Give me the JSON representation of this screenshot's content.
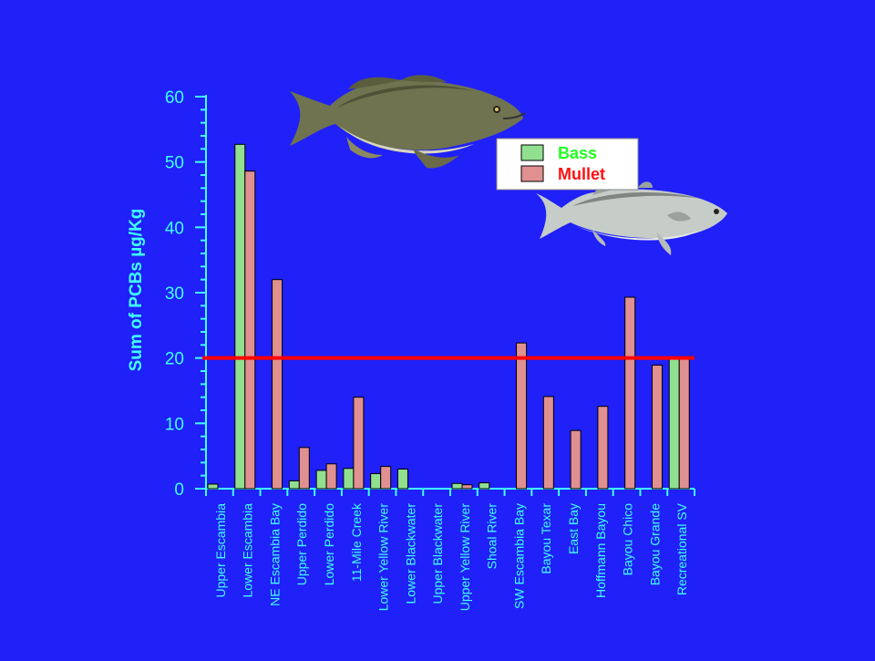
{
  "chart_data": {
    "type": "bar",
    "title": "",
    "xlabel": "",
    "ylabel": "Sum of PCBs µg/Kg",
    "ylim": [
      0,
      60
    ],
    "yticks": [
      0,
      10,
      20,
      30,
      40,
      50,
      60
    ],
    "grid": false,
    "legend_position": "top-right",
    "categories": [
      "Upper Escambia",
      "Lower Escambia",
      "NE Escambia Bay",
      "Upper Perdido",
      "Lower Perdido",
      "11-Mile Creek",
      "Lower Yellow River",
      "Lower Blackwater",
      "Upper Blackwater",
      "Upper Yellow River",
      "Shoal River",
      "SW Escambia Bay",
      "Bayou Texar",
      "East Bay",
      "Hoffmann Bayou",
      "Bayou Chico",
      "Bayou Grande",
      "Recreational SV"
    ],
    "series": [
      {
        "name": "Bass",
        "color": "#90e090",
        "values": [
          0.7,
          52.7,
          null,
          1.2,
          2.8,
          3.1,
          2.3,
          3.0,
          null,
          0.8,
          0.9,
          null,
          null,
          null,
          null,
          null,
          null,
          20
        ]
      },
      {
        "name": "Mullet",
        "color": "#e09090",
        "values": [
          null,
          48.6,
          32,
          6.3,
          3.8,
          14,
          3.4,
          null,
          null,
          0.6,
          null,
          22.3,
          14.1,
          8.9,
          12.6,
          29.3,
          18.9,
          20
        ]
      }
    ],
    "reference_line": {
      "y": 20,
      "color": "#ff0000"
    }
  },
  "colors": {
    "background": "#2020f8",
    "axis": "#40ffff",
    "bass_label": "#20ff20",
    "mullet_label": "#ff1010"
  },
  "images": [
    "largemouth-bass",
    "mullet-fish"
  ]
}
